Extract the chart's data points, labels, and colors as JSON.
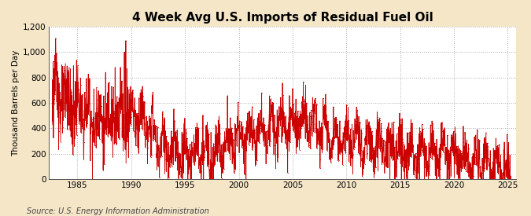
{
  "title": "4 Week Avg U.S. Imports of Residual Fuel Oil",
  "ylabel": "Thousand Barrels per Day",
  "source": "Source: U.S. Energy Information Administration",
  "bg_color": "#F5E6C8",
  "plot_bg_color": "#FFFFFF",
  "line_color": "#CC0000",
  "grid_color": "#999999",
  "ylim": [
    0,
    1200
  ],
  "yticks": [
    0,
    200,
    400,
    600,
    800,
    1000,
    1200
  ],
  "ytick_labels": [
    "0",
    "200",
    "400",
    "600",
    "800",
    "1,000",
    "1,200"
  ],
  "xtick_years": [
    1985,
    1990,
    1995,
    2000,
    2005,
    2010,
    2015,
    2020,
    2025
  ],
  "start_year": 1982.3,
  "end_year": 2025.8,
  "title_fontsize": 11,
  "label_fontsize": 7.5,
  "tick_fontsize": 7.5,
  "source_fontsize": 7
}
